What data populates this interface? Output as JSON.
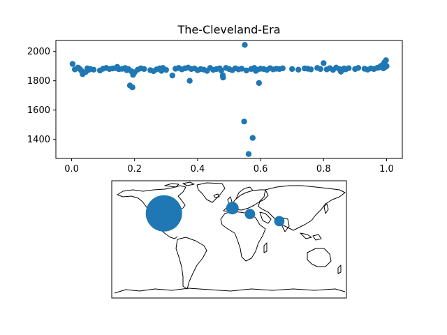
{
  "chart_data": [
    {
      "type": "scatter",
      "title": "The-Cleveland-Era",
      "xlabel": "",
      "ylabel": "",
      "xlim": [
        -0.05,
        1.05
      ],
      "ylim": [
        1270,
        2075
      ],
      "xticks": [
        0.0,
        0.2,
        0.4,
        0.6,
        0.8,
        1.0
      ],
      "xtick_labels": [
        "0.0",
        "0.2",
        "0.4",
        "0.6",
        "0.8",
        "1.0"
      ],
      "yticks": [
        1400,
        1600,
        1800,
        2000
      ],
      "ytick_labels": [
        "1400",
        "1600",
        "1800",
        "2000"
      ],
      "marker_color": "#1f77b4",
      "grid": false,
      "points": [
        [
          0.003,
          1915
        ],
        [
          0.01,
          1878
        ],
        [
          0.02,
          1890
        ],
        [
          0.025,
          1882
        ],
        [
          0.03,
          1870
        ],
        [
          0.035,
          1845
        ],
        [
          0.045,
          1860
        ],
        [
          0.05,
          1885
        ],
        [
          0.055,
          1875
        ],
        [
          0.06,
          1880
        ],
        [
          0.07,
          1876
        ],
        [
          0.09,
          1870
        ],
        [
          0.1,
          1882
        ],
        [
          0.11,
          1888
        ],
        [
          0.12,
          1880
        ],
        [
          0.13,
          1884
        ],
        [
          0.14,
          1886
        ],
        [
          0.145,
          1895
        ],
        [
          0.15,
          1879
        ],
        [
          0.16,
          1881
        ],
        [
          0.17,
          1887
        ],
        [
          0.175,
          1872
        ],
        [
          0.18,
          1880
        ],
        [
          0.185,
          1768
        ],
        [
          0.19,
          1865
        ],
        [
          0.193,
          1755
        ],
        [
          0.195,
          1840
        ],
        [
          0.2,
          1858
        ],
        [
          0.21,
          1876
        ],
        [
          0.22,
          1885
        ],
        [
          0.23,
          1880
        ],
        [
          0.25,
          1872
        ],
        [
          0.26,
          1866
        ],
        [
          0.27,
          1878
        ],
        [
          0.28,
          1885
        ],
        [
          0.285,
          1868
        ],
        [
          0.29,
          1888
        ],
        [
          0.3,
          1874
        ],
        [
          0.32,
          1836
        ],
        [
          0.33,
          1882
        ],
        [
          0.34,
          1888
        ],
        [
          0.35,
          1878
        ],
        [
          0.36,
          1885
        ],
        [
          0.37,
          1890
        ],
        [
          0.375,
          1800
        ],
        [
          0.38,
          1880
        ],
        [
          0.39,
          1884
        ],
        [
          0.4,
          1872
        ],
        [
          0.41,
          1880
        ],
        [
          0.42,
          1876
        ],
        [
          0.43,
          1868
        ],
        [
          0.44,
          1888
        ],
        [
          0.45,
          1874
        ],
        [
          0.46,
          1880
        ],
        [
          0.47,
          1885
        ],
        [
          0.475,
          1870
        ],
        [
          0.48,
          1838
        ],
        [
          0.481,
          1822
        ],
        [
          0.49,
          1888
        ],
        [
          0.5,
          1880
        ],
        [
          0.51,
          1872
        ],
        [
          0.52,
          1885
        ],
        [
          0.53,
          1878
        ],
        [
          0.54,
          1882
        ],
        [
          0.548,
          1522
        ],
        [
          0.55,
          2045
        ],
        [
          0.555,
          1870
        ],
        [
          0.562,
          1300
        ],
        [
          0.57,
          1880
        ],
        [
          0.575,
          1410
        ],
        [
          0.58,
          1888
        ],
        [
          0.585,
          1868
        ],
        [
          0.59,
          1876
        ],
        [
          0.595,
          1785
        ],
        [
          0.6,
          1882
        ],
        [
          0.61,
          1880
        ],
        [
          0.62,
          1874
        ],
        [
          0.63,
          1886
        ],
        [
          0.64,
          1878
        ],
        [
          0.65,
          1882
        ],
        [
          0.66,
          1880
        ],
        [
          0.67,
          1885
        ],
        [
          0.7,
          1880
        ],
        [
          0.72,
          1876
        ],
        [
          0.74,
          1884
        ],
        [
          0.75,
          1882
        ],
        [
          0.76,
          1878
        ],
        [
          0.78,
          1888
        ],
        [
          0.79,
          1880
        ],
        [
          0.8,
          1920
        ],
        [
          0.81,
          1878
        ],
        [
          0.82,
          1886
        ],
        [
          0.83,
          1874
        ],
        [
          0.84,
          1890
        ],
        [
          0.85,
          1880
        ],
        [
          0.855,
          1862
        ],
        [
          0.86,
          1876
        ],
        [
          0.865,
          1884
        ],
        [
          0.87,
          1878
        ],
        [
          0.88,
          1886
        ],
        [
          0.9,
          1880
        ],
        [
          0.91,
          1888
        ],
        [
          0.93,
          1882
        ],
        [
          0.94,
          1876
        ],
        [
          0.95,
          1884
        ],
        [
          0.96,
          1880
        ],
        [
          0.97,
          1888
        ],
        [
          0.975,
          1890
        ],
        [
          0.98,
          1898
        ],
        [
          0.985,
          1905
        ],
        [
          0.99,
          1885
        ],
        [
          0.993,
          1925
        ],
        [
          0.995,
          1910
        ],
        [
          0.997,
          1895
        ],
        [
          0.998,
          1940
        ],
        [
          1.0,
          1900
        ]
      ]
    },
    {
      "type": "scatter",
      "subtype": "map",
      "projection": "plate-carree",
      "marker_color": "#1f77b4",
      "points": [
        {
          "region": "North America",
          "lon": -100,
          "lat": 40,
          "relative_size": 1.0
        },
        {
          "region": "Western Europe",
          "lon": 5,
          "lat": 48,
          "relative_size": 0.12
        },
        {
          "region": "Middle East",
          "lon": 32,
          "lat": 39,
          "relative_size": 0.08
        },
        {
          "region": "Central Asia",
          "lon": 77,
          "lat": 28,
          "relative_size": 0.08
        }
      ]
    }
  ]
}
